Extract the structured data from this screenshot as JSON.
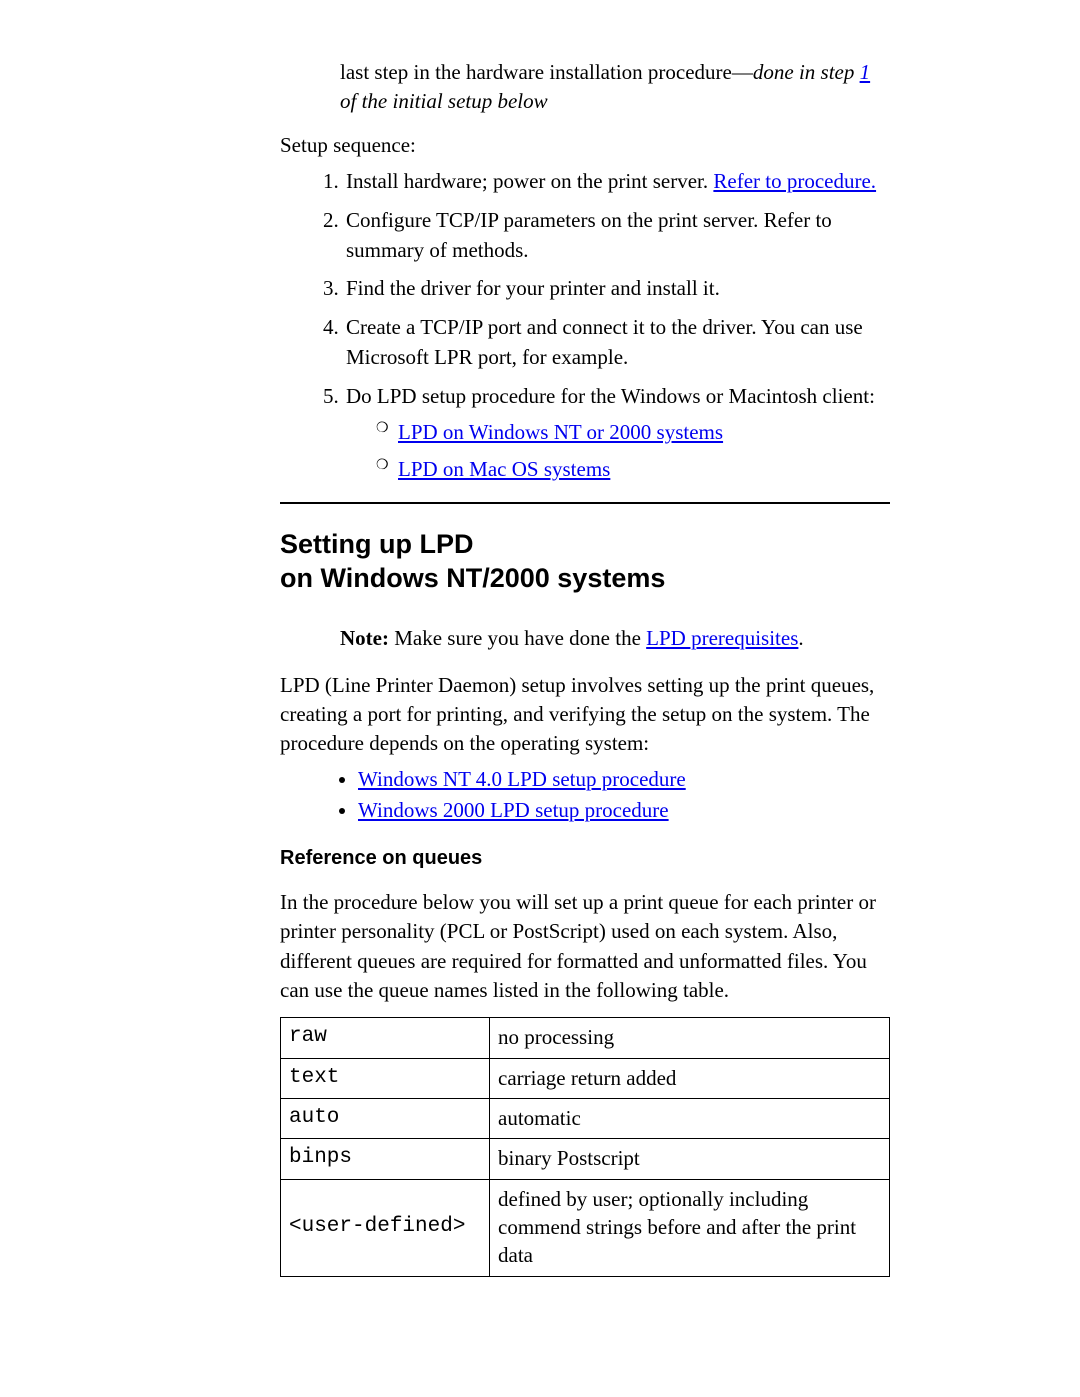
{
  "intro": {
    "prefix": "last step in the hardware installation procedure—",
    "italic_before_link": "done in step ",
    "step_link": "1",
    "italic_after": " of the initial setup below"
  },
  "setup_label": "Setup sequence:",
  "setup_items": {
    "i1_before": "Install hardware; power on the print server. ",
    "i1_link": "Refer to procedure.",
    "i2": "Configure TCP/IP parameters on the print server. Refer to summary of methods.",
    "i3": "Find the driver for your printer and install it.",
    "i4": "Create a TCP/IP port and connect it to the driver. You can use Microsoft LPR port, for example.",
    "i5": "Do LPD setup procedure for the Windows or Macintosh client:",
    "sub1": "LPD on Windows NT or 2000 systems",
    "sub2": "LPD on Mac OS systems"
  },
  "heading_line1": "Setting up LPD",
  "heading_line2": "on Windows NT/2000 systems",
  "note": {
    "bold": "Note:",
    "before": " Make sure you have done the ",
    "link": "LPD prerequisites",
    "after": "."
  },
  "lpd_para": "LPD (Line Printer Daemon) setup involves setting up the print queues, creating a port for printing, and verifying the setup on the system. The procedure depends on the operating system:",
  "os_links": {
    "nt": "Windows NT 4.0 LPD setup procedure",
    "w2k": "Windows 2000 LPD setup procedure"
  },
  "ref_heading": "Reference on queues",
  "ref_para": "In the procedure below you will set up a print queue for each printer or printer personality (PCL or PostScript) used on each system. Also, different queues are required for formatted and unformatted files. You can use the queue names listed in the following table.",
  "table": {
    "rows": [
      {
        "name": "raw",
        "desc": "no processing"
      },
      {
        "name": "text",
        "desc": "carriage return added"
      },
      {
        "name": "auto",
        "desc": "automatic"
      },
      {
        "name": "binps",
        "desc": "binary Postscript"
      },
      {
        "name": "<user-defined>",
        "desc": "defined by user; optionally including commend strings before and after the print data"
      }
    ]
  }
}
